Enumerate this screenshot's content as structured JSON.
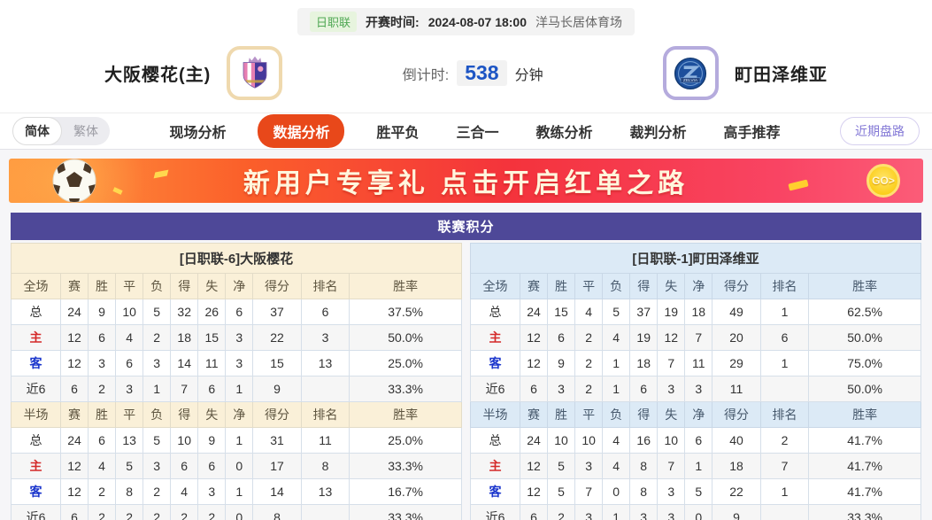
{
  "top_bar": {
    "league_badge": "日职联",
    "kickoff_label": "开赛时间:",
    "kickoff_time": "2024-08-07 18:00",
    "venue": "洋马长居体育场"
  },
  "match": {
    "home_team": "大阪樱花(主)",
    "away_team": "町田泽维亚",
    "countdown_label": "倒计时:",
    "countdown_value": "538",
    "countdown_unit": "分钟"
  },
  "nav": {
    "lang_simplified": "简体",
    "lang_traditional": "繁体",
    "tabs": [
      {
        "id": "live-analysis",
        "label": "现场分析",
        "active": false
      },
      {
        "id": "data-analysis",
        "label": "数据分析",
        "active": true
      },
      {
        "id": "win-draw-loss",
        "label": "胜平负",
        "active": false
      },
      {
        "id": "three-in-one",
        "label": "三合一",
        "active": false
      },
      {
        "id": "coach-analysis",
        "label": "教练分析",
        "active": false
      },
      {
        "id": "referee-analysis",
        "label": "裁判分析",
        "active": false
      },
      {
        "id": "expert-picks",
        "label": "高手推荐",
        "active": false
      }
    ],
    "recent_button": "近期盘路"
  },
  "banner": {
    "text": "新用户专享礼  点击开启红单之路",
    "go_label": "GO>"
  },
  "colors": {
    "accent_orange": "#e8481a",
    "title_purple": "#4e4898",
    "home_header_bg": "#faf0d8",
    "away_header_bg": "#dceaf6",
    "home_row_red": "#d42a2a",
    "away_row_blue": "#1a35cc",
    "countdown_blue": "#1d55c4",
    "league_green": "#50a854"
  },
  "standings": {
    "title": "联赛积分",
    "stat_columns": [
      "赛",
      "胜",
      "平",
      "负",
      "得",
      "失",
      "净",
      "得分",
      "排名",
      "胜率"
    ],
    "teams": [
      {
        "id": "home",
        "header": "[日职联-6]大阪樱花",
        "sections": [
          {
            "label": "全场",
            "rows": [
              {
                "label": "总",
                "type": "total",
                "values": [
                  "24",
                  "9",
                  "10",
                  "5",
                  "32",
                  "26",
                  "6",
                  "37",
                  "6",
                  "37.5%"
                ]
              },
              {
                "label": "主",
                "type": "home",
                "values": [
                  "12",
                  "6",
                  "4",
                  "2",
                  "18",
                  "15",
                  "3",
                  "22",
                  "3",
                  "50.0%"
                ]
              },
              {
                "label": "客",
                "type": "away",
                "values": [
                  "12",
                  "3",
                  "6",
                  "3",
                  "14",
                  "11",
                  "3",
                  "15",
                  "13",
                  "25.0%"
                ]
              },
              {
                "label": "近6",
                "type": "recent",
                "values": [
                  "6",
                  "2",
                  "3",
                  "1",
                  "7",
                  "6",
                  "1",
                  "9",
                  "",
                  "33.3%"
                ]
              }
            ]
          },
          {
            "label": "半场",
            "rows": [
              {
                "label": "总",
                "type": "total",
                "values": [
                  "24",
                  "6",
                  "13",
                  "5",
                  "10",
                  "9",
                  "1",
                  "31",
                  "11",
                  "25.0%"
                ]
              },
              {
                "label": "主",
                "type": "home",
                "values": [
                  "12",
                  "4",
                  "5",
                  "3",
                  "6",
                  "6",
                  "0",
                  "17",
                  "8",
                  "33.3%"
                ]
              },
              {
                "label": "客",
                "type": "away",
                "values": [
                  "12",
                  "2",
                  "8",
                  "2",
                  "4",
                  "3",
                  "1",
                  "14",
                  "13",
                  "16.7%"
                ]
              },
              {
                "label": "近6",
                "type": "recent",
                "values": [
                  "6",
                  "2",
                  "2",
                  "2",
                  "2",
                  "2",
                  "0",
                  "8",
                  "",
                  "33.3%"
                ]
              }
            ]
          }
        ]
      },
      {
        "id": "away",
        "header": "[日职联-1]町田泽维亚",
        "sections": [
          {
            "label": "全场",
            "rows": [
              {
                "label": "总",
                "type": "total",
                "values": [
                  "24",
                  "15",
                  "4",
                  "5",
                  "37",
                  "19",
                  "18",
                  "49",
                  "1",
                  "62.5%"
                ]
              },
              {
                "label": "主",
                "type": "home",
                "values": [
                  "12",
                  "6",
                  "2",
                  "4",
                  "19",
                  "12",
                  "7",
                  "20",
                  "6",
                  "50.0%"
                ]
              },
              {
                "label": "客",
                "type": "away",
                "values": [
                  "12",
                  "9",
                  "2",
                  "1",
                  "18",
                  "7",
                  "11",
                  "29",
                  "1",
                  "75.0%"
                ]
              },
              {
                "label": "近6",
                "type": "recent",
                "values": [
                  "6",
                  "3",
                  "2",
                  "1",
                  "6",
                  "3",
                  "3",
                  "11",
                  "",
                  "50.0%"
                ]
              }
            ]
          },
          {
            "label": "半场",
            "rows": [
              {
                "label": "总",
                "type": "total",
                "values": [
                  "24",
                  "10",
                  "10",
                  "4",
                  "16",
                  "10",
                  "6",
                  "40",
                  "2",
                  "41.7%"
                ]
              },
              {
                "label": "主",
                "type": "home",
                "values": [
                  "12",
                  "5",
                  "3",
                  "4",
                  "8",
                  "7",
                  "1",
                  "18",
                  "7",
                  "41.7%"
                ]
              },
              {
                "label": "客",
                "type": "away",
                "values": [
                  "12",
                  "5",
                  "7",
                  "0",
                  "8",
                  "3",
                  "5",
                  "22",
                  "1",
                  "41.7%"
                ]
              },
              {
                "label": "近6",
                "type": "recent",
                "values": [
                  "6",
                  "2",
                  "3",
                  "1",
                  "3",
                  "3",
                  "0",
                  "9",
                  "",
                  "33.3%"
                ]
              }
            ]
          }
        ]
      }
    ]
  }
}
